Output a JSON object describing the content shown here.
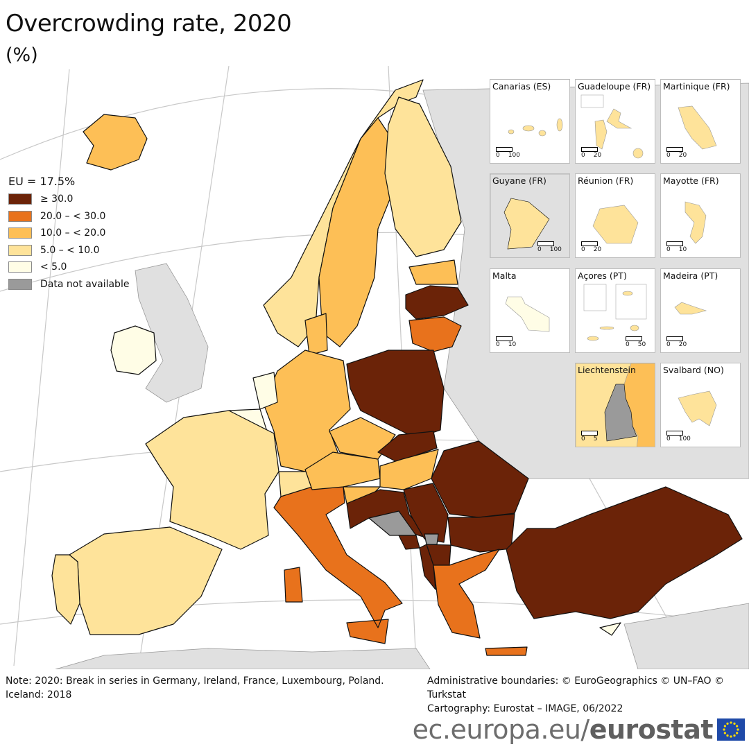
{
  "title": "Overcrowding rate, 2020",
  "subtitle": "(%)",
  "legend": {
    "header": "EU = 17.5%",
    "items": [
      {
        "label": "≥ 30.0",
        "color": "#6b2308"
      },
      {
        "label": "20.0 – < 30.0",
        "color": "#e8721c"
      },
      {
        "label": "10.0 – < 20.0",
        "color": "#fdbf56"
      },
      {
        "label": "5.0 – < 10.0",
        "color": "#fee39a"
      },
      {
        "label": "< 5.0",
        "color": "#fffde6"
      },
      {
        "label": "Data not available",
        "color": "#9a9a9a"
      }
    ]
  },
  "colors": {
    "non_eu_land": "#e0e0e0",
    "sea": "#ffffff",
    "graticule": "#c8c8c8",
    "eu_flag": "#1f4aa8",
    "eu_stars": "#ffdd00"
  },
  "map_classes": {
    "IS": 2,
    "IE": 4,
    "NO": 3,
    "SE": 2,
    "FI": 3,
    "EE": 2,
    "LV": 0,
    "LT": 1,
    "PL": 0,
    "DE": 2,
    "NL": 4,
    "BE": 4,
    "FR": 3,
    "ES": 3,
    "PT": 3,
    "CH": 3,
    "IT": 1,
    "AT": 2,
    "CZ": 2,
    "SK": 0,
    "HU": 2,
    "SI": 2,
    "HR": 0,
    "RS": 0,
    "BA": 5,
    "XK": 5,
    "RO": 0,
    "BG": 0,
    "EL": 1,
    "MK": 0,
    "AL": 0,
    "ME": 0,
    "TR": 0,
    "CY": 4,
    "DK": 2
  },
  "insets": [
    {
      "name": "Canarias (ES)",
      "scale": [
        "0",
        "100"
      ],
      "class": 3
    },
    {
      "name": "Guadeloupe (FR)",
      "scale": [
        "0",
        "20"
      ],
      "class": 3
    },
    {
      "name": "Martinique (FR)",
      "scale": [
        "0",
        "20"
      ],
      "class": 3
    },
    {
      "name": "Guyane (FR)",
      "scale": [
        "0",
        "100"
      ],
      "class": 3
    },
    {
      "name": "Réunion (FR)",
      "scale": [
        "0",
        "20"
      ],
      "class": 3
    },
    {
      "name": "Mayotte (FR)",
      "scale": [
        "0",
        "10"
      ],
      "class": 3
    },
    {
      "name": "Malta",
      "scale": [
        "0",
        "10"
      ],
      "class": 4
    },
    {
      "name": "Açores (PT)",
      "scale": [
        "0",
        "50"
      ],
      "class": 3
    },
    {
      "name": "Madeira (PT)",
      "scale": [
        "0",
        "20"
      ],
      "class": 3
    },
    {
      "name": "Liechtenstein",
      "scale": [
        "0",
        "5"
      ],
      "class": 5
    },
    {
      "name": "Svalbard (NO)",
      "scale": [
        "0",
        "100"
      ],
      "class": 3
    }
  ],
  "notes": {
    "left": [
      "Note: 2020: Break in series in Germany, Ireland, France, Luxembourg, Poland.",
      "Iceland: 2018"
    ],
    "right": [
      "Administrative boundaries: © EuroGeographics © UN–FAO © Turkstat",
      "Cartography: Eurostat – IMAGE, 06/2022"
    ]
  },
  "logo": {
    "url": "ec.europa.eu/",
    "brand": "eurostat"
  }
}
